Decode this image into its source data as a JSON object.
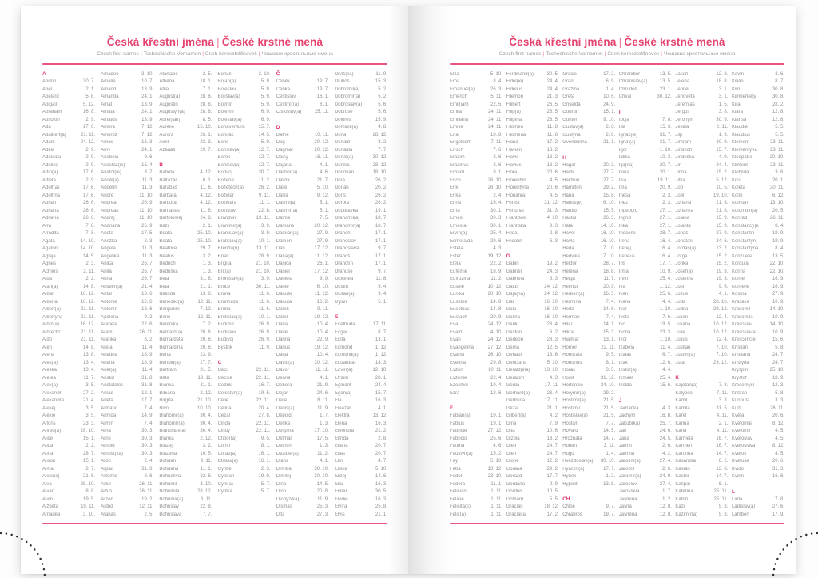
{
  "page_header": {
    "title_parts": [
      "Česká křestní jména",
      "České krstné mená"
    ],
    "subtitle_parts": [
      "Czech first names",
      "Tschechische Vornamen",
      "Cseh keresztelőnevek",
      "Чешские крестильные имена"
    ]
  },
  "colors": {
    "accent_pink": "#e5436f",
    "rule_pink": "#e8557e",
    "text_gray": "#8f8f8f",
    "dot_black": "#2e2e2e"
  },
  "pages": [
    {
      "columns": [
        [
          "#A",
          "Abdon|30. 7.",
          "Ábel|2. 1.",
          "Abelard|5. 8.",
          "Abigail|5. 12.",
          "Abrahám|16. 8.",
          "Absolon|2. 9.",
          "Ada|17. 6.",
          "Adalbert(a)|21. 11.",
          "Adam|24. 12.",
          "Adéla|2. 9.",
          "Adelaida|2. 9.",
          "Adelina|2. 9.",
          "Adin(a)|17. 6.",
          "Adléta|2. 9.",
          "Adolf(a)|17. 6.",
          "Adolfína|17. 6.",
          "Adrian|26. 6.",
          "Adriána|26. 6.",
          "Adriena|26. 6.",
          "Afra|7. 8.",
          "Afrodita|7. 8.",
          "Agáta|14. 10.",
          "Agaton|14. 10.",
          "Aglaja|14. 5.",
          "Agnes|2. 3.",
          "Achiles|2. 11.",
          "Aida|2. 2.",
          "Alan(a)|14. 8.",
          "Alban|16. 12.",
          "Albena|16. 12.",
          "Albert(a)|21. 11.",
          "Albertýna|21. 11.",
          "Albín(a)|16. 12.",
          "Albrecht|21. 11.",
          "Aldo|21. 11.",
          "Alen|14. 8.",
          "Alena|13. 8.",
          "Aleš(a)|13. 4.",
          "Aleška|13. 4.",
          "Aletea|11. 7.",
          "Alex(a)|3. 5.",
          "Alexandr|27. 2.",
          "Alexandra|21. 4.",
          "Alexej|3. 5.",
          "Alexie|3. 5.",
          "Alfons|23. 3.",
          "Alfréd(a)|28. 10.",
          "Alice|15. 1.",
          "Alida|2. 2.",
          "Alina|28. 7.",
          "Alison|15. 1.",
          "Alma|2. 7.",
          "Alois(ie)|21. 6.",
          "Alva|28. 10.",
          "Alvar|8. 8.",
          "Alvin|19. 5.",
          "Alžběta|19. 11.",
          "Amadea|3. 10."
        ],
        [
          "Amadeo|3. 10.",
          "Amálie|10. 7.",
          "Amand|13. 9.",
          "Amanda|24. 1.",
          "Amát|13. 9.",
          "Amáta|24. 1.",
          "Amatus|13. 9.",
          "Ambra|7. 12.",
          "Ambrož|7. 12.",
          "Ámos|16. 3.",
          "Amy|24. 1.",
          "Anabela|9. 6.",
          "Anastáz(ie)|15. 4.",
          "Anatol(ie)|3. 7.",
          "Anděl(a)|11. 3.",
          "Andělín|11. 3.",
          "André|11. 10.",
          "Andrea|26. 9.",
          "Andreas|11. 10.",
          "Andrej|11. 10.",
          "Andriana|26. 9.",
          "Aneta|17. 5.",
          "Anežka|2. 3.",
          "Angela|11. 3.",
          "Angelika|11. 3.",
          "Anika|26. 7.",
          "Anita|26. 7.",
          "Anna|26. 7.",
          "Anselm(a)|21. 4.",
          "Antal|13. 6.",
          "Antonie|12. 6.",
          "Antonín|13. 6.",
          "Apolena|9. 2.",
          "Arabela|22. 6.",
          "Aram|26. 11.",
          "Aranka|8. 2.",
          "Areta|11. 4.",
          "Ariadna|18. 9.",
          "Ariana|18. 9.",
          "Ariel(a)|11. 4.",
          "Aristid|31. 8.",
          "Aristoteles|31. 8.",
          "Arkád|12. 1.",
          "Arleta|17. 7.",
          "Armand|7. 4.",
          "Armida|14. 9.",
          "Armin|7. 4.",
          "Arna|30. 3.",
          "Arne|30. 3.",
          "Arnold|30. 3.",
          "Arnošt(ka)|30. 3.",
          "Áron|2. 4.",
          "Arpád|31. 3.",
          "Artemis|8. 6.",
          "Artur|26. 11.",
          "Artuš|26. 11.",
          "Arzen|19. 2.",
          "Astrid|12. 11.",
          "Atanas|2. 5."
        ],
        [
          "Atanázie|2. 5.",
          "Athéna|18. 1.",
          "Atila|7. 1.",
          "August(a)|28. 8.",
          "Augustin|28. 8.",
          "Augustýn(a)|28. 8.",
          "Aurel(ián)|8. 5.",
          "Aurélie|15. 10.",
          "Aurora|26. 1.",
          "Axel|23. 3.",
          "Azariáš|29. 7.",
          "",
          "#B",
          "Babeta|4. 12.",
          "Baltazar|6. 1.",
          "Barabáš|11. 6.",
          "Barbara|4. 12.",
          "Barbora|4. 12.",
          "Barnabáš|11. 6.",
          "Bartoloměj|24. 8.",
          "Bazil|2. 1.",
          "Beata|25. 10.",
          "Beáta|25. 10.",
          "Beatrice|29. 7.",
          "Beatus|3. 2.",
          "Bedřich|1. 3.",
          "Bedřiška|1. 3.",
          "Bela|31. 8.",
          "Béla|21. 1.",
          "Belinda|13. 8.",
          "Benedikt(a)|12. 11.",
          "Benjamín|7. 12.",
          "Beno|12. 11.",
          "Berenika|7. 2.",
          "Bernard(a)|20. 8.",
          "Bernardeta|20. 8.",
          "Bernardina|20. 8.",
          "Berta|23. 9.",
          "Bertold(a)|27. 7.",
          "Bertram|31. 5.",
          "Běta|19. 11.",
          "Bianka|21. 1.",
          "Bibiana|2. 12.",
          "Birgita|21. 10.",
          "Bivoj|10. 10.",
          "Blahomil(a)|30. 4.",
          "Blahomír(a)|30. 4.",
          "Blahoslav(a)|30. 4.",
          "Blanka|2. 12.",
          "Blažej|3. 2.",
          "Blažena|10. 5.",
          "Bohdan|9. 11.",
          "Bohdana|11. 1.",
          "Bohuchval|22. 8.",
          "Bohumil|3. 10.",
          "Bohumila|28. 12.",
          "Bohumír(a)|8. 11.",
          "Bohuslav|22. 8.",
          "Bohuslava|7. 7."
        ],
        [
          "Bohuš|3. 10.",
          "Bojan(a)|5. 9.",
          "Bojeslav|5. 9.",
          "Bojislav(a)|5. 9.",
          "Bojmír|5. 9.",
          "Bolemír|6. 9.",
          "Boleslav(a)|6. 9.",
          "Bonaventura|15. 7.",
          "Bonifác|14. 5.",
          "Boris|5. 9.",
          "Borislav(a)|12. 7.",
          "Bořek|12. 7.",
          "Bořislav(a)|12. 7.",
          "Bořivoj|30. 7.",
          "Božena|11. 2.",
          "Božetěch(a)|26. 2.",
          "Božidar|9. 11.",
          "Božidara|11. 1.",
          "Božislav|22. 8.",
          "Brandon|13. 11.",
          "Branimír(a)|3. 9.",
          "Branislav(a)|3. 9.",
          "Bratislav(a)|10. 1.",
          "Brenda(n)|13. 11.",
          "Brian|28. 9.",
          "Brigita|21. 10.",
          "Brit(a)|21. 10.",
          "Bronislav(a)|3. 9.",
          "Bruce|30. 11.",
          "Bruna|11. 6.",
          "Brunhilda|11. 6.",
          "Bruno|11. 6.",
          "Břetislav(a)|10. 1.",
          "Budimír|26. 9.",
          "Budislav|26. 9.",
          "Budivoj|26. 9.",
          "Bystrík|11. 9.",
          "",
          "#C",
          "Cecil|22. 11.",
          "Cecílie|22. 11.",
          "Cedrik|16. 7.",
          "Celestýn(a)|19. 5.",
          "Celie|22. 11.",
          "Celina|20. 4.",
          "Cézar|27. 8.",
          "Cinda|22. 11.",
          "Cindy|22. 11.",
          "Ctibor(a)|9. 5.",
          "Ctimír|8. 1.",
          "Ctirad(a)|16. 1.",
          "Ctislav(a)|16. 1.",
          "Cyntie|2. 3.",
          "Cyprián|19. 9.",
          "Cyril(a)|5. 7.",
          "Cyrilka|5. 7.",
          "",
          "",
          ""
        ],
        [
          "#Č",
          "Čeněk|19. 7.",
          "Čeňka|19. 7.",
          "Čestislav|16. 1.",
          "Čestmír(a)|8. 1.",
          "Čistoslav(a)|25. 11.",
          "",
          "#D",
          "Dafné|10. 11.",
          "Dag|20. 12.",
          "Dagmar|20. 12.",
          "Daisy|16. 11.",
          "Dajana|4. 1.",
          "Dalibor(a)|4. 6.",
          "Dalida|21. 7.",
          "Dalie|5. 10.",
          "Dalila|9. 12.",
          "Dalimil(a)|5. 1.",
          "Dalimír(a)|5. 1.",
          "Dalma|7. 5.",
          "Damaris|20. 12.",
          "Damián(a)|27. 9.",
          "Damon|27. 9.",
          "Dan|17. 12.",
          "Dana(é)|11. 12.",
          "Danica|26. 1.",
          "Daniel|17. 12.",
          "Daniela|9. 9.",
          "Dante|6. 10.",
          "Danuše|11. 12.",
          "Danuta|16. 2.",
          "Darek|9. 11.",
          "Darel|19. 12.",
          "Daria|10. 4.",
          "Darie|10. 4.",
          "Darina|22. 9.",
          "Darius|19. 12.",
          "Darja|10. 4.",
          "David(a)|30. 12.",
          "Davor|11. 11.",
          "Deana|4. 1.",
          "Debora|21. 9.",
          "Dejan|24. 6.",
          "Delie|8. 11.",
          "Denis(a)|11. 9.",
          "Děpold|1. 7.",
          "Derika|1. 3.",
          "Despina|17. 10.",
          "Dětmar|17. 5.",
          "Dětřich|1. 3.",
          "Dezider(a)|11. 2.",
          "Diana|4. 1.",
          "Dimitra|30. 10.",
          "Dimitrij|30. 10.",
          "Dina|14. 5.",
          "Dino|20. 8.",
          "Dionýz(ka)|11. 9.",
          "Dismas|25. 3.",
          "Dita|27. 3."
        ],
        [
          "Divíš(ka)|11. 9.",
          "Dluhoš|15. 3.",
          "Dobromil(a)|5. 2.",
          "Dobromír(a)|5. 2.",
          "Dobroslav(a)|5. 6.",
          "Dobruše|5. 6.",
          "Dolores|15. 9.",
          "Dominik(a)|4. 8.",
          "Dona|28. 12.",
          "Donald|3. 2.",
          "Donalda|7. 7.",
          "Donát(a)|30. 12.",
          "Donika|28. 12.",
          "Donovan|18. 10.",
          "Dora|26. 2.",
          "Dorián|20. 2.",
          "Doris|26. 2.",
          "Dorota|26. 2.",
          "Doubravka|19. 1.",
          "Drahomil(a)|18. 7.",
          "Drahomír(a)|18. 7.",
          "Drahoň|17. 1.",
          "Drahoslav|17. 1.",
          "Drahoslava|9. 7.",
          "Drahoš|17. 1.",
          "Drahotín|17. 1.",
          "Drahuše|9. 7.",
          "Dulcinea|11. 8.",
          "Dustin|9. 4.",
          "Dušan(a)|9. 4.",
          "Dylan|5. 1.",
          "",
          "#E",
          "Edeltruda|17. 11.",
          "Edgar|8. 7.",
          "Edita|13. 1.",
          "Edmond|1. 12.",
          "Edmund(a)|1. 12.",
          "Eduard(a)|18. 3.",
          "Edvín(a)|12. 10.",
          "Efraim|28. 1.",
          "Egmont|24. 4.",
          "Egon(a)|15. 7.",
          "Ela|16. 3.",
          "Eleazar|4. 1.",
          "Elektra|13. 12.",
          "Elena|16. 3.",
          "Eleonora|21. 2.",
          "Elfrída|2. 8.",
          "Eliana|20. 7.",
          "Eliáš|20. 7.",
          "Elin|4. 7.",
          "Eliška|5. 10.",
          "Elizej|14. 6.",
          "Ella|16. 3.",
          "Elmar|30. 5.",
          "Elodie|16. 3.",
          "Elvíra|25. 8.",
          "Elvis|21. 1."
        ]
      ]
    },
    {
      "columns": [
        [
          "Elza|5. 10.",
          "Ema|8. 4.",
          "Emanuel(a)|26. 3.",
          "Emerich|5. 11.",
          "Emil(ián)|22. 5.",
          "Emila|24. 11.",
          "Emiliána|24. 11.",
          "Emílie|24. 11.",
          "Ena|18. 8.",
          "Engelbert|7. 11.",
          "Enoch|7. 6.",
          "Erazim|2. 6.",
          "Erazmus|2. 6.",
          "Erhard|8. 1.",
          "Erich|26. 10.",
          "Erik|26. 10.",
          "Erika|2. 4.",
          "Erina|16. 4.",
          "Erna|30. 1.",
          "Ernest|30. 3.",
          "Ernesta|30. 1.",
          "Ervín(a)|25. 4.",
          "Esmeralda|29. 6.",
          "Estela|4. 3.",
          "Ester|19. 12.",
          "Etela|22. 2.",
          "Eufémie|18. 9.",
          "Eufrozina|11. 2.",
          "Eulálie|10. 12.",
          "Eunika|20. 10.",
          "Eusebie|14. 8.",
          "Eusebius|14. 8.",
          "Eustach|20. 9.",
          "Eva|24. 12.",
          "Evald|4. 10.",
          "Evan|24. 12.",
          "Evangelína|27. 12.",
          "Evarist|26. 10.",
          "Evelína|29. 8.",
          "Evžen|10. 11.",
          "Evženie|22. 4.",
          "Ezechiel|10. 4.",
          "Ezra|12. 6.",
          "",
          "#F",
          "Fabián(a)|19. 1.",
          "Fabius|19. 1.",
          "Fabricie|27. 12.",
          "Fabricio|25. 6.",
          "Fatima|4. 6.",
          "Faustýn(a)|15. 2.",
          "Fay|5. 10.",
          "Féba|13. 12.",
          "Fedor|23. 10.",
          "Fedora|11. 1.",
          "Felicián|1. 11.",
          "Felície|1. 11.",
          "Felicita(s)|1. 11.",
          "Felix(a)|1. 11."
        ],
        [
          "Ferdinand(a)|30. 5.",
          "Fidel(ie)|24. 4.",
          "Fidelius|24. 4.",
          "Filemon|21. 3.",
          "Filibert|26. 5.",
          "Filip(a)|26. 5.",
          "Filipína|26. 5.",
          "Filomen|11. 8.",
          "Filoména|11. 8.",
          "Fiona|17. 2.",
          "Flavián|18. 2.",
          "Flavie|18. 2.",
          "Flavius|18. 2.",
          "Flóra|20. 6.",
          "Florentýn|4. 5.",
          "Florentýna|20. 6.",
          "Florián(a)|4. 5.",
          "Forest|31. 12.",
          "Fortunát|31. 3.",
          "František|4. 10.",
          "Františka|9. 3.",
          "Frída|2. 8.",
          "Fridolín|6. 3.",
          "",
          "#G",
          "Gabin|19. 2.",
          "Gabriel|24. 3.",
          "Gabriela|8. 3.",
          "Gaius|24. 12.",
          "Gaja(na)|24. 12.",
          "Gál|16. 10.",
          "Gala|16. 10.",
          "Galina|16. 10.",
          "Garik|23. 4.",
          "Gaston|6. 2.",
          "Gedeon|28. 3.",
          "Gema|12. 5.",
          "Genadij|13. 6.",
          "Genciana|5. 10.",
          "Gerald(ina)|13. 10.",
          "Gerazim|4. 3.",
          "Gerda|17. 11.",
          "Gerhard(a)|23. 4.",
          "Gertruda|17. 11.",
          "Géza|21. 1.",
          "Gilbert(a)|4. 2.",
          "Gina|7. 9.",
          "Gita|10. 6.",
          "Gizela|18. 2.",
          "Gleb|24. 7.",
          "Glen|24. 7.",
          "Glorie|12. 2.",
          "Gorana|29. 2.",
          "Gorazd|17. 7.",
          "Gordana|9. 9.",
          "Gordon|10. 5.",
          "Gothard|5. 5.",
          "Gracián|18. 12.",
          "Graciána|17. 2."
        ],
        [
          "Grácie|17. 2.",
          "Grant|6. 9.",
          "Gražina|1. 4.",
          "Gréta|10. 6.",
          "Griselda|24. 9.",
          "Gudrun|15. 1.",
          "Gunter|9. 10.",
          "Gustav(a)|2. 8.",
          "Gustýna|2. 8.",
          "Gvendolína|21. 1.",
          "",
          "#H",
          "Hagar|20. 3.",
          "Haidi|27. 7.",
          "Haidrun|27. 7.",
          "Hamilton|29. 2.",
          "Hana|15. 8.",
          "Hanuš(e)|6. 10.",
          "Harold|15. 5.",
          "Haštal|26. 3.",
          "Háta|14. 10.",
          "Havel|16. 10.",
          "Havla|16. 10.",
          "Heda|17. 10.",
          "Hedvika|17. 10.",
          "Hektor|28. 7.",
          "Helena|18. 8.",
          "Helga|11. 7.",
          "Helmut|20. 9.",
          "Herbert(a)|16. 3.",
          "Hermína|7. 4.",
          "Herta|14. 6.",
          "Heřman|7. 4.",
          "Hilar|14. 1.",
          "Hilda|15. 3.",
          "Hjalmar|13. 1.",
          "Homér|22. 11.",
          "Honoráta|9. 5.",
          "Honorius|8. 1.",
          "Horác|3. 5.",
          "Horst|31. 12.",
          "Hortenzie|24. 10.",
          "Horymír(a)|29. 2.",
          "Hostimil(a)|21. 5.",
          "Hostimír|21. 5.",
          "Hostislav(a)|21. 5.",
          "Hostivít|7. 7.",
          "Hovard|14. 5.",
          "Hroznata|14. 7.",
          "Hubert|3. 11.",
          "Hugo|1. 4.",
          "Hvězdoslav(a)|30. 10.",
          "Hyacint(a)|17. 7.",
          "Hynek|1. 2.",
          "Hypolit|13. 8.",
          "",
          "#CH",
          "Chloe|9. 7.",
          "Chrabroš|19. 7."
        ],
        [
          "Chranibor|13. 5.",
          "Chranislav(a)|13. 5.",
          "Chrudoš|23. 1.",
          "Chval|30. 12.",
          "",
          "#I",
          "Iboja|7. 8.",
          "Ida|15. 3.",
          "Ignác(ie)|31. 7.",
          "Ignát(a)|31. 7.",
          "Igor|1. 10.",
          "Ildika|10. 3.",
          "Ilja(na)|20. 7.",
          "Ilona|20. 1.",
          "Ilsa|19. 11.",
          "Ima|20. 9.",
          "Inesa|2. 3.",
          "Inéz|2. 3.",
          "Ingeborg|27. 1.",
          "Ingrid|27. 1.",
          "Inka|27. 1.",
          "Inocenc|28. 7.",
          "Irena|16. 4.",
          "Irenej|16. 4.",
          "Ireneus|16. 4.",
          "Iris|17. 7.",
          "Irma|10. 9.",
          "Irvin|25. 4.",
          "Iva|1. 12.",
          "Ivan|25. 6.",
          "Ivana|4. 4.",
          "Ivar|1. 10.",
          "Iveta|7. 6.",
          "Ivo|19. 5.",
          "Ivona|23. 3.",
          "Ivor|1. 10.",
          "Izabela|11. 4.",
          "Izaiáš|6. 7.",
          "Izák|12. 6.",
          "Izidor(a)|4. 4.",
          "Izmael|25. 4.",
          "Izolda|15. 6.",
          "",
          "#J",
          "Jadranka|4. 3.",
          "Jáchym|16. 8.",
          "Jakub(ka)|25. 7.",
          "Jan|24. 6.",
          "Jana|24. 5.",
          "Jarmil|2. 6.",
          "Jarmila|4. 2.",
          "Jarolím(a)|27. 4.",
          "Jaromil|2. 6.",
          "Jaromír(a)|24. 9.",
          "Jaroslav|27. 4.",
          "Jaroslava|1. 7.",
          "Jasmína|1. 2.",
          "Jasna|12. 8.",
          "Jasněna|12. 8."
        ],
        [
          "Jasoň|12. 8.",
          "Jelena|18. 8.",
          "Jenifer|3. 1.",
          "Jenovéfa|3. 1.",
          "Jeremiáš|1. 5.",
          "Jerguš|3. 8.",
          "Jeroným|30. 9.",
          "Jesika|2. 11.",
          "Jiljí|1. 9.",
          "Jimram|30. 9.",
          "Jindřich|15. 7.",
          "Jindřiška|4. 9.",
          "Jiří|24. 4.",
          "Jiřina|15. 2.",
          "Jitka|5. 12.",
          "Job|10. 5.",
          "Joel|19. 10.",
          "Johana|21. 8.",
          "Johanka|21. 8.",
          "Jolana|15. 9.",
          "Jolanta|15. 9.",
          "Jonáš|27. 9.",
          "Jonatan|24. 6.",
          "Jordan(a)|13. 2.",
          "Jorga|15. 2.",
          "Jorika|15. 2.",
          "Josef(a)|19. 3.",
          "Josefína|19. 3.",
          "Jošt|9. 6.",
          "Jozue|4. 1.",
          "Juda|28. 10.",
          "Judita|29. 12.",
          "Julián|12. 4.",
          "Juliána|10. 12.",
          "Julie|10. 12.",
          "Julius|12. 4.",
          "Justián|7. 10.",
          "Justýn(a)|7. 10.",
          "Juta|29. 12.",
          "",
          "#K",
          "Kajetán(a)|7. 8.",
          "Kalypso|7. 11.",
          "Kamil|3. 3.",
          "Kamila|31. 5.",
          "Karel|4. 11.",
          "Karina|2. 1.",
          "Karla|4. 11.",
          "Karmela|16. 7.",
          "Karmen|16. 7.",
          "Karolína|14. 7.",
          "Kasandra|6. 2.",
          "Kasián|13. 8.",
          "Kastor|14. 7.",
          "Kašpar|6. 1.",
          "Kateřina|25. 11.",
          "Katrin|25. 11.",
          "Kazi|5. 3.",
          "Kazimír(a)|5. 3."
        ],
        [
          "Kevin|3. 6.",
          "Kilián|8. 7.",
          "Kim|30. 8.",
          "Kimberl(e)y|30. 8.",
          "Kira|28. 2.",
          "Klára|12. 8.",
          "Klarisa|12. 8.",
          "Klaudie|5. 5.",
          "Klaudius|5. 5.",
          "Klement|23. 11.",
          "Klementýna|23. 11.",
          "Kleopatra|20. 10.",
          "Kliment|23. 11.",
          "Klotylda|3. 6.",
          "Knut|20. 1.",
          "Koleta|20. 11.",
          "Kolín|6. 12.",
          "Kolman|13. 10.",
          "Kolombín(a)|20. 5.",
          "Konrád|26. 11.",
          "Konstanc(i)e|8. 4.",
          "Konstantin|19. 9.",
          "Konstantýn|19. 9.",
          "Konstantýna|8. 4.",
          "Konzuela|13. 5.",
          "Kordula|22. 10.",
          "Korina|22. 10.",
          "Kornel|16. 9.",
          "Kornélie|16. 9.",
          "Kosma|27. 9.",
          "Krasava|10. 9.",
          "Krasomil|14. 10.",
          "Krasomila|10. 9.",
          "Krasoslav|14. 10.",
          "Krasoslava|10. 9.",
          "Krescencie|15. 6.",
          "Kristián|5. 8.",
          "Kristiána|24. 7.",
          "Kristýna|24. 7.",
          "Kryšpín|25. 10.",
          "Kryštof|18. 9.",
          "Křesomysl|12. 3.",
          "Křišťan|5. 8.",
          "Kunhuta|3. 3.",
          "Kurt|26. 11.",
          "Květa|20. 6.",
          "Květomila|8. 12.",
          "Květomír|4. 5.",
          "Květoslav|4. 5.",
          "Květoslava|8. 12.",
          "Květoš|4. 5.",
          "Květuše|20. 6.",
          "Kvido|31. 3.",
          "Kvirin|16. 6.",
          "",
          "#L",
          "Lada|7. 8.",
          "Ladislav(a)|27. 6.",
          "Lambert|17. 9."
        ]
      ]
    }
  ]
}
